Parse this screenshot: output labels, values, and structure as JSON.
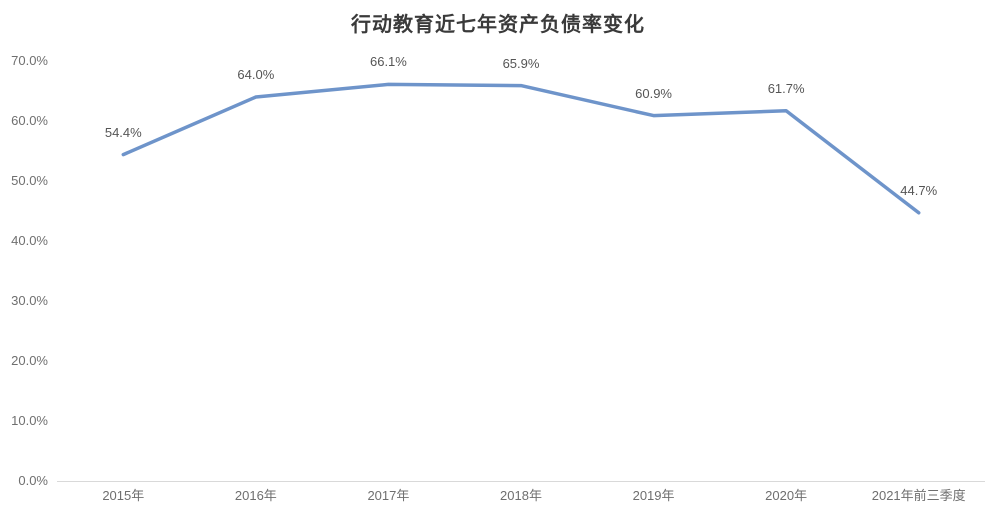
{
  "chart_data": {
    "type": "line",
    "title": "行动教育近七年资产负债率变化",
    "categories": [
      "2015年",
      "2016年",
      "2017年",
      "2018年",
      "2019年",
      "2020年",
      "2021年前三季度"
    ],
    "series": [
      {
        "name": "资产负债率",
        "values": [
          54.4,
          64.0,
          66.1,
          65.9,
          60.9,
          61.7,
          44.7
        ],
        "data_labels": [
          "54.4%",
          "64.0%",
          "66.1%",
          "65.9%",
          "60.9%",
          "61.7%",
          "44.7%"
        ]
      }
    ],
    "ylabel": "",
    "xlabel": "",
    "ylim": [
      0,
      70
    ],
    "ytick_step": 10,
    "yticks": [
      {
        "label": "70.0%",
        "value": 70
      },
      {
        "label": "60.0%",
        "value": 60
      },
      {
        "label": "50.0%",
        "value": 50
      },
      {
        "label": "40.0%",
        "value": 40
      },
      {
        "label": "30.0%",
        "value": 30
      },
      {
        "label": "20.0%",
        "value": 20
      },
      {
        "label": "10.0%",
        "value": 10
      },
      {
        "label": "0.0%",
        "value": 0
      }
    ],
    "grid": false,
    "legend": "none",
    "colors": {
      "line": "#6e94ca",
      "title_text": "#3a3a3a",
      "tick_text": "#6f6f6f",
      "data_label_text": "#555555",
      "axis_line": "#d9d9d9",
      "background": "#ffffff"
    }
  }
}
